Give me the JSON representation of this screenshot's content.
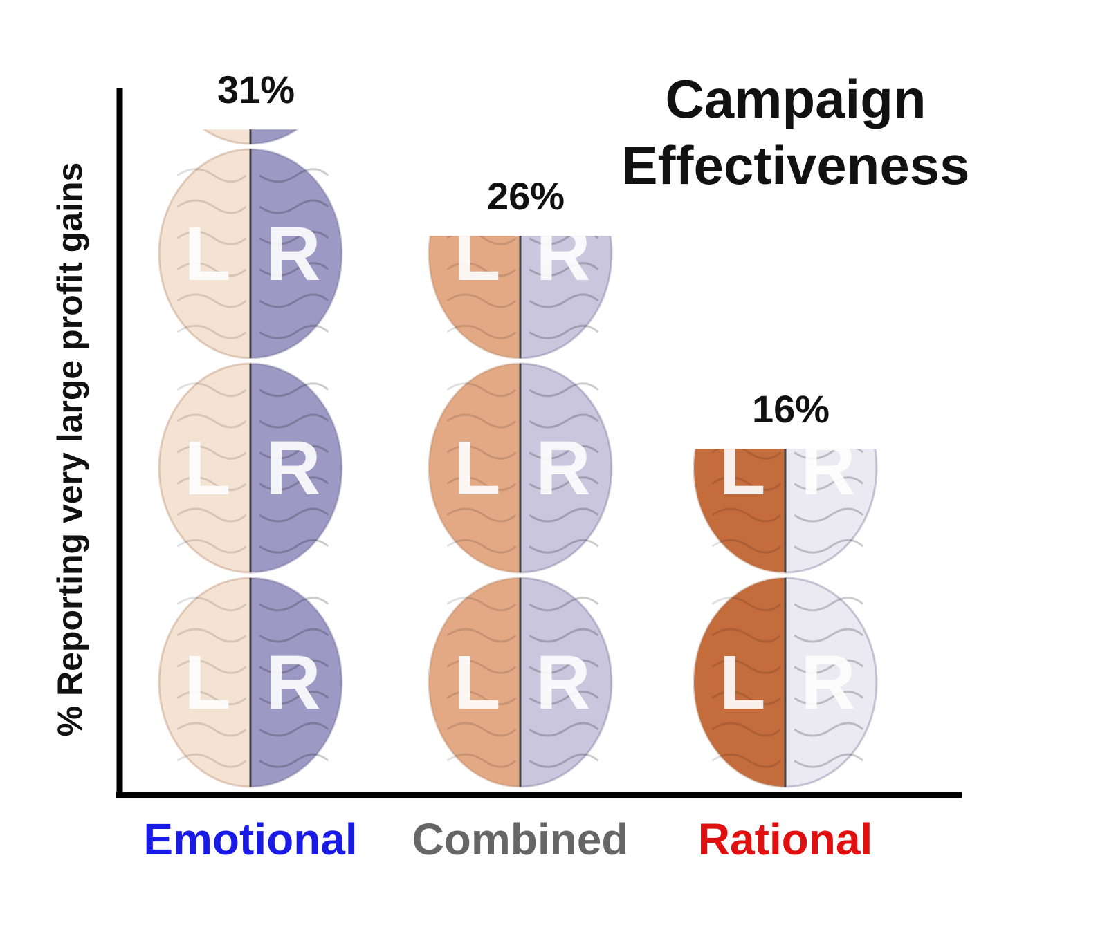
{
  "chart_data": {
    "type": "bar",
    "title_lines": [
      "Campaign",
      "Effectiveness"
    ],
    "xlabel": "",
    "ylabel": "% Reporting very large profit gains",
    "categories": [
      "Emotional",
      "Combined",
      "Rational"
    ],
    "values": [
      31,
      26,
      16
    ],
    "value_labels": [
      "31%",
      "26%",
      "16%"
    ],
    "category_colors": [
      "#1a1ae6",
      "#666666",
      "#e01010"
    ],
    "brain_colors": [
      {
        "left": "#f4e2d2",
        "right": "#9c9ac4"
      },
      {
        "left": "#e2a984",
        "right": "#cac6de"
      },
      {
        "left": "#c46c3c",
        "right": "#ebe9f2"
      }
    ],
    "brain_letters": [
      "L",
      "R"
    ],
    "ylim": [
      0,
      33
    ],
    "grid": false,
    "legend": "none"
  }
}
